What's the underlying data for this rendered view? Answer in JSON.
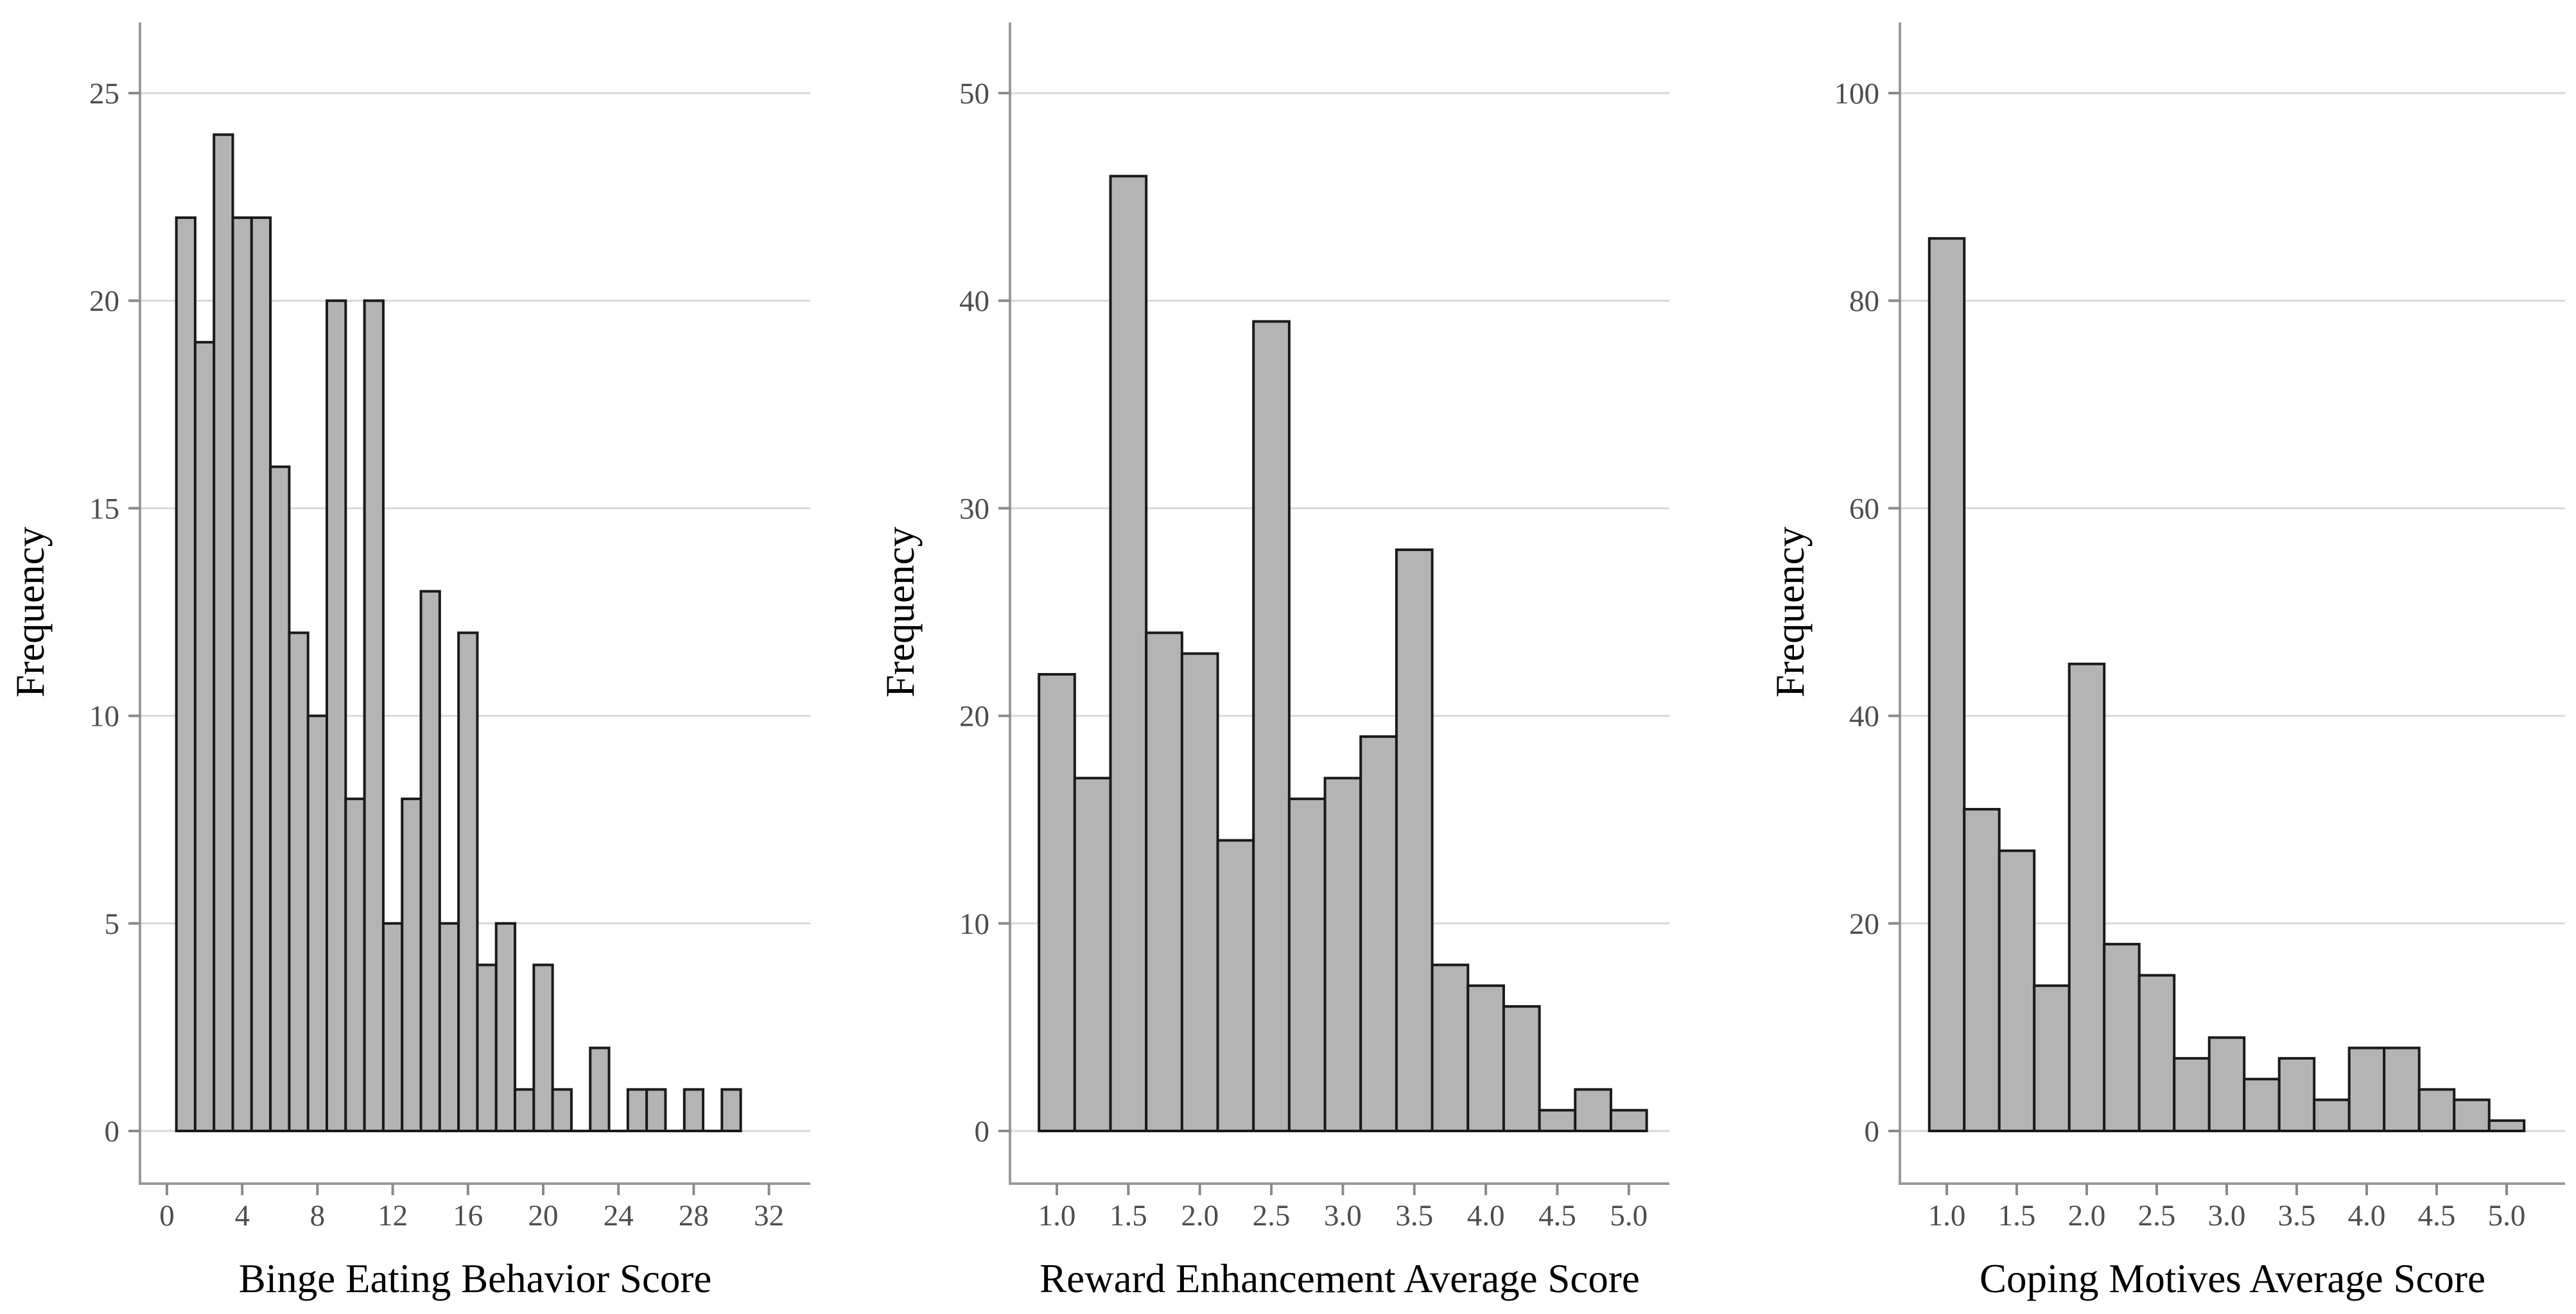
{
  "figure": {
    "kind": "histogram-triptych",
    "shared_ylabel": "Frequency"
  },
  "style": {
    "background": "#ffffff",
    "bar_fill": "#b4b4b4",
    "bar_stroke": "#1a1a1a",
    "gridline_color": "#d8d8d8",
    "axis_line_color": "#9a9a9a",
    "tick_color": "#8a8a8a",
    "tick_label_color": "#4d4d4d",
    "axis_title_color": "#000000"
  },
  "chart_data": [
    {
      "type": "bar",
      "subtype": "histogram",
      "title": "",
      "xlabel": "Binge Eating Behavior Score",
      "ylabel": "Frequency",
      "bin_width": 1,
      "bin_centers": [
        1,
        2,
        3,
        4,
        5,
        6,
        7,
        8,
        9,
        10,
        11,
        12,
        13,
        14,
        15,
        16,
        17,
        18,
        19,
        20,
        21,
        22,
        23,
        24,
        25,
        26,
        27,
        28,
        29,
        30
      ],
      "values": [
        22,
        19,
        24,
        22,
        22,
        16,
        12,
        10,
        20,
        8,
        20,
        5,
        8,
        13,
        5,
        12,
        4,
        5,
        1,
        4,
        1,
        0,
        2,
        0,
        1,
        1,
        0,
        1,
        0,
        1
      ],
      "x_ticks": [
        0,
        4,
        8,
        12,
        16,
        20,
        24,
        28,
        32
      ],
      "x_tick_labels": [
        "0",
        "4",
        "8",
        "12",
        "16",
        "20",
        "24",
        "28",
        "32"
      ],
      "y_ticks": [
        0,
        5,
        10,
        15,
        20,
        25
      ],
      "y_tick_labels": [
        "0",
        "5",
        "10",
        "15",
        "20",
        "25"
      ],
      "xlim": [
        -0.2,
        34
      ],
      "ylim": [
        0,
        26.7
      ],
      "grid": "horizontal-major",
      "legend": "none"
    },
    {
      "type": "bar",
      "subtype": "histogram",
      "title": "",
      "xlabel": "Reward Enhancement Average Score",
      "ylabel": "Frequency",
      "bin_width": 0.25,
      "bin_centers": [
        1.0,
        1.25,
        1.5,
        1.75,
        2.0,
        2.25,
        2.5,
        2.75,
        3.0,
        3.25,
        3.5,
        3.75,
        4.0,
        4.25,
        4.5,
        4.75,
        5.0
      ],
      "values": [
        22,
        17,
        46,
        24,
        23,
        14,
        39,
        16,
        17,
        19,
        28,
        8,
        7,
        6,
        1,
        2,
        1
      ],
      "x_ticks": [
        1.0,
        1.5,
        2.0,
        2.5,
        3.0,
        3.5,
        4.0,
        4.5,
        5.0
      ],
      "x_tick_labels": [
        "1.0",
        "1.5",
        "2.0",
        "2.5",
        "3.0",
        "3.5",
        "4.0",
        "4.5",
        "5.0"
      ],
      "y_ticks": [
        0,
        10,
        20,
        30,
        40,
        50
      ],
      "y_tick_labels": [
        "0",
        "10",
        "20",
        "30",
        "40",
        "50"
      ],
      "xlim": [
        0.67,
        5.33
      ],
      "ylim": [
        0,
        53.4
      ],
      "grid": "horizontal-major",
      "legend": "none"
    },
    {
      "type": "bar",
      "subtype": "histogram",
      "title": "",
      "xlabel": "Coping Motives Average Score",
      "ylabel": "Frequency",
      "bin_width": 0.25,
      "bin_centers": [
        1.0,
        1.25,
        1.5,
        1.75,
        2.0,
        2.25,
        2.5,
        2.75,
        3.0,
        3.25,
        3.5,
        3.75,
        4.0,
        4.25,
        4.5,
        4.75,
        5.0
      ],
      "values": [
        86,
        31,
        27,
        14,
        45,
        18,
        15,
        7,
        9,
        5,
        7,
        3,
        8,
        8,
        4,
        3,
        1
      ],
      "x_ticks": [
        1.0,
        1.5,
        2.0,
        2.5,
        3.0,
        3.5,
        4.0,
        4.5,
        5.0
      ],
      "x_tick_labels": [
        "1.0",
        "1.5",
        "2.0",
        "2.5",
        "3.0",
        "3.5",
        "4.0",
        "4.5",
        "5.0"
      ],
      "y_ticks": [
        0,
        20,
        40,
        60,
        80,
        100
      ],
      "y_tick_labels": [
        "0",
        "20",
        "40",
        "60",
        "80",
        "100"
      ],
      "xlim": [
        0.67,
        5.42
      ],
      "ylim": [
        0,
        106.8
      ],
      "grid": "horizontal-major",
      "legend": "none"
    }
  ]
}
